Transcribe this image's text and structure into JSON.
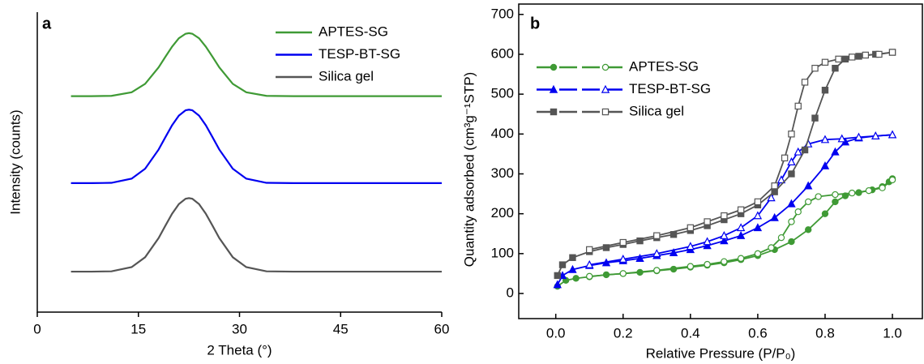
{
  "chart_data": [
    {
      "type": "line",
      "panel_label": "a",
      "xlabel": "2 Theta (°)",
      "ylabel": "Intensity (counts)",
      "xlim": [
        0,
        60
      ],
      "xticks": [
        0,
        15,
        30,
        45,
        60
      ],
      "ylim": [
        0,
        100
      ],
      "x": [
        5,
        8,
        11,
        14,
        16,
        18,
        19,
        20,
        21,
        22,
        22.5,
        23,
        24,
        25,
        26,
        27,
        29,
        31,
        34,
        38,
        45,
        52,
        60
      ],
      "series": [
        {
          "name": "APTES-SG",
          "color": "#3f9a35",
          "values": [
            72,
            72,
            72.1,
            73.3,
            76.1,
            81.6,
            85.1,
            88.5,
            91.3,
            92.8,
            93,
            92.8,
            91.3,
            88.5,
            85.1,
            81.6,
            76.1,
            73.3,
            72.1,
            72,
            72,
            72,
            72
          ]
        },
        {
          "name": "TESP-BT-SG",
          "color": "#0000f0",
          "values": [
            43,
            43,
            43.1,
            44.5,
            47.8,
            54.2,
            58.3,
            62.3,
            65.5,
            67.3,
            67.5,
            67.3,
            65.5,
            62.3,
            58.3,
            54.2,
            47.8,
            44.5,
            43.1,
            43,
            43,
            43,
            43
          ]
        },
        {
          "name": "Silica gel",
          "color": "#555555",
          "values": [
            13.5,
            13.5,
            13.6,
            15,
            18.3,
            24.7,
            28.8,
            32.8,
            36,
            37.8,
            38,
            37.8,
            36,
            32.8,
            28.8,
            24.7,
            18.3,
            15,
            13.6,
            13.5,
            13.5,
            13.5,
            13.5
          ]
        }
      ]
    },
    {
      "type": "isotherm",
      "panel_label": "b",
      "xlabel": "Relative Pressure (P/P₀)",
      "ylabel": "Quantity adsorbed (cm³g⁻¹STP)",
      "xlim": [
        -0.11,
        1.089
      ],
      "xticks": [
        {
          "value": 0,
          "label": "0.0"
        },
        0.2,
        0.4,
        0.6,
        0.8,
        {
          "value": 1,
          "label": "1.0"
        }
      ],
      "ylim": [
        -63,
        726
      ],
      "yticks": [
        0,
        100,
        200,
        300,
        400,
        500,
        600,
        700
      ],
      "series": [
        {
          "name": "APTES-SG",
          "color": "#3f9a35",
          "marker": "circle",
          "adsorption": {
            "x": [
              0.005,
              0.03,
              0.06,
              0.1,
              0.15,
              0.2,
              0.25,
              0.3,
              0.35,
              0.4,
              0.45,
              0.5,
              0.55,
              0.6,
              0.65,
              0.7,
              0.75,
              0.8,
              0.83,
              0.86,
              0.9,
              0.94,
              0.97,
              0.99,
              1.0
            ],
            "values": [
              18,
              33,
              38,
              42,
              47,
              50,
              53,
              57,
              61,
              66,
              71,
              77,
              85,
              95,
              110,
              130,
              160,
              200,
              230,
              245,
              253,
              260,
              268,
              280,
              288
            ]
          },
          "desorption": {
            "x": [
              1.0,
              0.97,
              0.93,
              0.88,
              0.83,
              0.78,
              0.75,
              0.72,
              0.7,
              0.67,
              0.64,
              0.6,
              0.55,
              0.5,
              0.45,
              0.4,
              0.3,
              0.2,
              0.1
            ],
            "values": [
              285,
              265,
              258,
              252,
              248,
              243,
              230,
              205,
              180,
              140,
              115,
              100,
              88,
              80,
              73,
              68,
              58,
              50,
              43
            ]
          }
        },
        {
          "name": "TESP-BT-SG",
          "color": "#0000f0",
          "marker": "triangle",
          "adsorption": {
            "x": [
              0.005,
              0.02,
              0.05,
              0.1,
              0.15,
              0.2,
              0.25,
              0.3,
              0.35,
              0.4,
              0.45,
              0.5,
              0.55,
              0.6,
              0.65,
              0.7,
              0.75,
              0.8,
              0.83,
              0.86,
              0.9,
              0.95,
              1.0
            ],
            "values": [
              22,
              45,
              60,
              70,
              77,
              82,
              88,
              95,
              102,
              110,
              120,
              132,
              145,
              165,
              190,
              225,
              270,
              320,
              355,
              380,
              390,
              395,
              398
            ]
          },
          "desorption": {
            "x": [
              1.0,
              0.95,
              0.9,
              0.85,
              0.8,
              0.75,
              0.72,
              0.7,
              0.67,
              0.64,
              0.6,
              0.55,
              0.5,
              0.45,
              0.4,
              0.3,
              0.2,
              0.1
            ],
            "values": [
              398,
              395,
              392,
              388,
              386,
              375,
              355,
              330,
              285,
              240,
              195,
              165,
              145,
              130,
              118,
              100,
              86,
              72
            ]
          }
        },
        {
          "name": "Silica gel",
          "color": "#555555",
          "marker": "square",
          "adsorption": {
            "x": [
              0.005,
              0.02,
              0.05,
              0.1,
              0.15,
              0.2,
              0.25,
              0.3,
              0.35,
              0.4,
              0.45,
              0.5,
              0.55,
              0.6,
              0.65,
              0.7,
              0.74,
              0.77,
              0.8,
              0.83,
              0.86,
              0.9,
              0.95,
              1.0
            ],
            "values": [
              45,
              72,
              90,
              105,
              115,
              123,
              132,
              140,
              148,
              158,
              170,
              185,
              200,
              222,
              255,
              300,
              360,
              440,
              510,
              565,
              588,
              595,
              600,
              605
            ]
          },
          "desorption": {
            "x": [
              1.0,
              0.96,
              0.92,
              0.88,
              0.84,
              0.8,
              0.77,
              0.74,
              0.72,
              0.7,
              0.68,
              0.65,
              0.6,
              0.55,
              0.5,
              0.45,
              0.4,
              0.3,
              0.2,
              0.1
            ],
            "values": [
              605,
              600,
              598,
              593,
              588,
              580,
              565,
              530,
              470,
              400,
              340,
              270,
              230,
              210,
              195,
              180,
              165,
              145,
              128,
              110
            ]
          }
        }
      ]
    }
  ]
}
